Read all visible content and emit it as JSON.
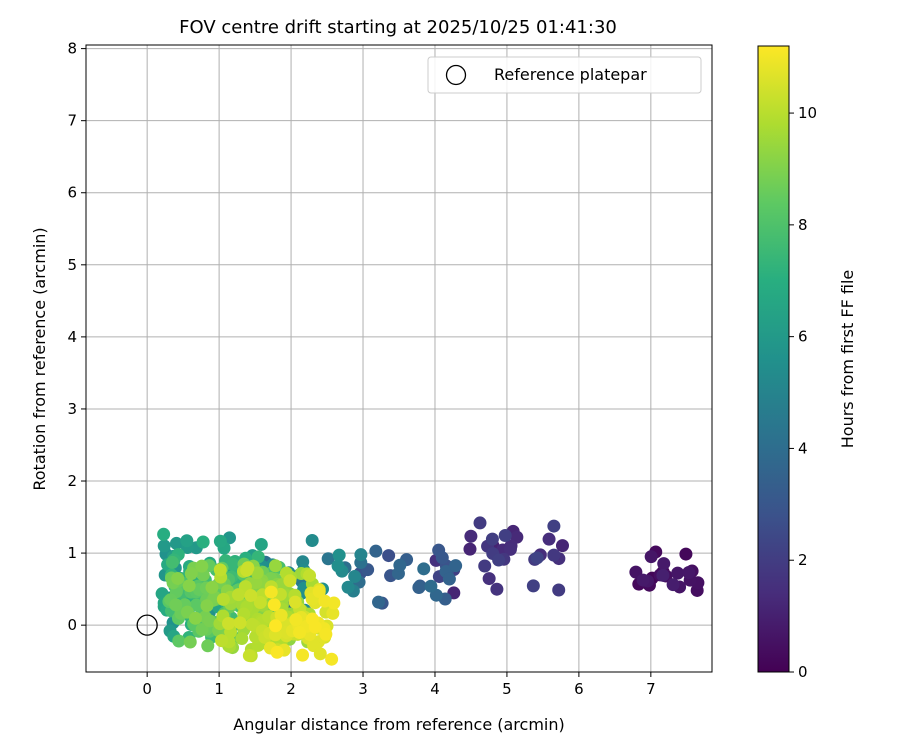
{
  "chart_data": {
    "type": "scatter",
    "title": "FOV centre drift starting at 2025/10/25 01:41:30",
    "xlabel": "Angular distance from reference (arcmin)",
    "ylabel": "Rotation from reference (arcmin)",
    "xlim": [
      -0.85,
      7.85
    ],
    "ylim": [
      -0.65,
      8.05
    ],
    "xticks": [
      "0",
      "1",
      "2",
      "3",
      "4",
      "5",
      "6",
      "7"
    ],
    "yticks": [
      "0",
      "1",
      "2",
      "3",
      "4",
      "5",
      "6",
      "7",
      "8"
    ],
    "grid": true,
    "legend": {
      "placement": "top-right",
      "entries": [
        "Reference platepar"
      ]
    },
    "reference_point": {
      "x": 0,
      "y": 0
    },
    "colorbar": {
      "label": "Hours from first FF file",
      "range": [
        0,
        11.2
      ],
      "ticks": [
        "0",
        "2",
        "4",
        "6",
        "8",
        "10"
      ],
      "colormap": "viridis"
    },
    "point_clusters": [
      {
        "hours": [
          0.0,
          1.0
        ],
        "x_range": [
          6.7,
          7.7
        ],
        "y_range": [
          0.3,
          1.1
        ],
        "count": 22
      },
      {
        "hours": [
          1.0,
          2.6
        ],
        "x_range": [
          4.0,
          6.0
        ],
        "y_range": [
          0.3,
          1.5
        ],
        "count": 32
      },
      {
        "hours": [
          2.6,
          4.0
        ],
        "x_range": [
          2.9,
          4.3
        ],
        "y_range": [
          0.2,
          1.2
        ],
        "count": 24
      },
      {
        "hours": [
          4.0,
          5.6
        ],
        "x_range": [
          1.4,
          3.0
        ],
        "y_range": [
          0.0,
          1.25
        ],
        "count": 45
      },
      {
        "hours": [
          5.6,
          7.4
        ],
        "x_range": [
          0.2,
          1.6
        ],
        "y_range": [
          -0.25,
          1.35
        ],
        "count": 120
      },
      {
        "hours": [
          7.4,
          9.2
        ],
        "x_range": [
          0.3,
          1.9
        ],
        "y_range": [
          -0.3,
          1.0
        ],
        "count": 130
      },
      {
        "hours": [
          9.2,
          10.4
        ],
        "x_range": [
          1.0,
          2.3
        ],
        "y_range": [
          -0.5,
          0.9
        ],
        "count": 110
      },
      {
        "hours": [
          10.4,
          11.2
        ],
        "x_range": [
          1.7,
          2.6
        ],
        "y_range": [
          -0.55,
          0.6
        ],
        "count": 50
      }
    ]
  }
}
